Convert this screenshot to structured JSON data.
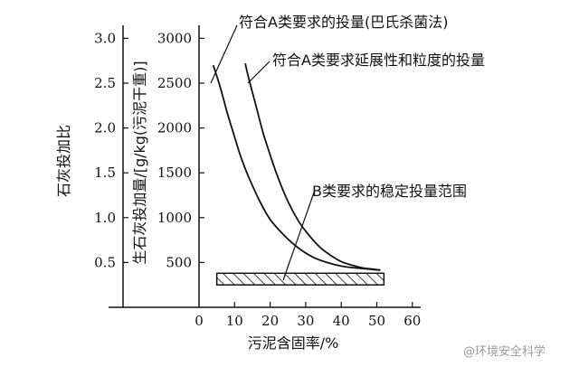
{
  "chart_data": {
    "type": "line",
    "x_axis": {
      "label": "污泥含固率/%",
      "ticks": [
        0,
        10,
        20,
        30,
        40,
        50,
        60
      ],
      "range": [
        0,
        60
      ]
    },
    "y_axis_right": {
      "label": "生石灰投加量/[g/kg(污泥干重)]",
      "ticks": [
        500,
        1000,
        1500,
        2000,
        2500,
        3000
      ],
      "range": [
        0,
        3200
      ]
    },
    "y_axis_left": {
      "label": "石灰投加比",
      "ticks": [
        "0.5",
        "1.0",
        "1.5",
        "2.0",
        "2.5",
        "3.0"
      ]
    },
    "series": [
      {
        "name": "符合A类要求的投量(巴氏杀菌法)",
        "x": [
          4,
          6,
          8,
          10,
          12,
          14,
          17,
          20,
          24,
          28,
          32,
          36,
          40,
          44,
          48,
          51
        ],
        "y": [
          2700,
          2450,
          2160,
          1900,
          1650,
          1450,
          1190,
          980,
          800,
          660,
          560,
          500,
          460,
          440,
          425,
          415
        ]
      },
      {
        "name": "符合A类要求延展性和粒度的投量",
        "x": [
          13,
          14,
          16,
          18,
          20,
          22,
          25,
          28,
          31,
          34,
          37,
          40,
          43,
          46,
          49,
          51
        ],
        "y": [
          2720,
          2550,
          2250,
          1950,
          1700,
          1470,
          1180,
          960,
          800,
          670,
          580,
          510,
          470,
          440,
          425,
          415
        ]
      }
    ],
    "band": {
      "name": "B类要求的稳定投量范围",
      "x_range": [
        5,
        52
      ],
      "y_range": [
        250,
        380
      ]
    }
  },
  "watermark": "@环境安全科学"
}
